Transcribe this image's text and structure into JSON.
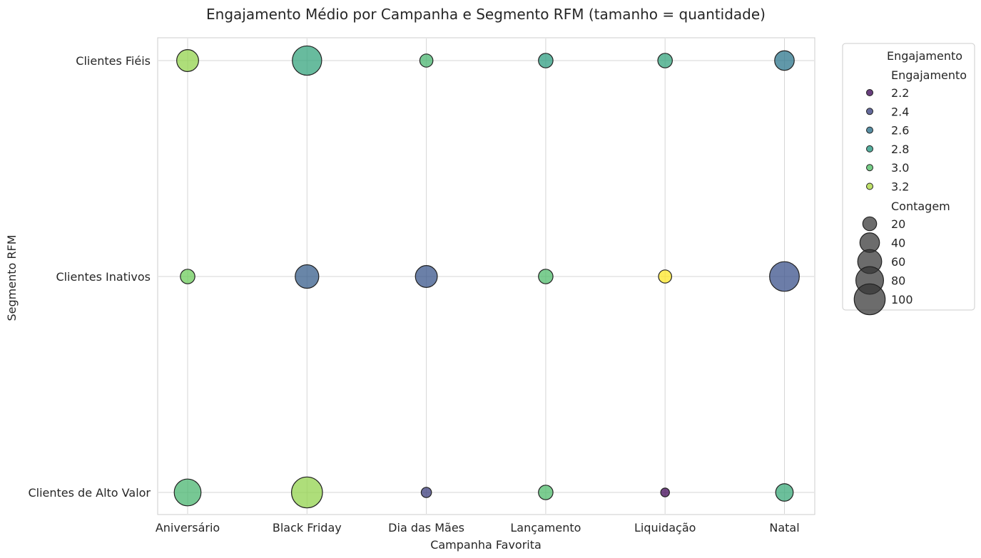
{
  "chart_data": {
    "type": "scatter",
    "title": "Engajamento Médio por Campanha e Segmento RFM (tamanho = quantidade)",
    "xlabel": "Campanha Favorita",
    "ylabel": "Segmento RFM",
    "categories_x": [
      "Aniversário",
      "Black Friday",
      "Dia das Mães",
      "Lançamento",
      "Liquidação",
      "Natal"
    ],
    "categories_y": [
      "Clientes de Alto Valor",
      "Clientes Inativos",
      "Clientes Fiéis"
    ],
    "grid": true,
    "color_scale": "viridis",
    "color_range": [
      2.15,
      3.35
    ],
    "points": [
      {
        "x": "Aniversário",
        "y": "Clientes Fiéis",
        "engajamento": 3.15,
        "contagem": 50
      },
      {
        "x": "Black Friday",
        "y": "Clientes Fiéis",
        "engajamento": 2.85,
        "contagem": 90
      },
      {
        "x": "Dia das Mães",
        "y": "Clientes Fiéis",
        "engajamento": 2.95,
        "contagem": 18
      },
      {
        "x": "Lançamento",
        "y": "Clientes Fiéis",
        "engajamento": 2.82,
        "contagem": 22
      },
      {
        "x": "Liquidação",
        "y": "Clientes Fiéis",
        "engajamento": 2.85,
        "contagem": 22
      },
      {
        "x": "Natal",
        "y": "Clientes Fiéis",
        "engajamento": 2.62,
        "contagem": 40
      },
      {
        "x": "Aniversário",
        "y": "Clientes Inativos",
        "engajamento": 3.08,
        "contagem": 22
      },
      {
        "x": "Black Friday",
        "y": "Clientes Inativos",
        "engajamento": 2.5,
        "contagem": 58
      },
      {
        "x": "Dia das Mães",
        "y": "Clientes Inativos",
        "engajamento": 2.47,
        "contagem": 50
      },
      {
        "x": "Lançamento",
        "y": "Clientes Inativos",
        "engajamento": 2.98,
        "contagem": 22
      },
      {
        "x": "Liquidação",
        "y": "Clientes Inativos",
        "engajamento": 3.35,
        "contagem": 18
      },
      {
        "x": "Natal",
        "y": "Clientes Inativos",
        "engajamento": 2.45,
        "contagem": 92
      },
      {
        "x": "Aniversário",
        "y": "Clientes de Alto Valor",
        "engajamento": 2.95,
        "contagem": 75
      },
      {
        "x": "Black Friday",
        "y": "Clientes de Alto Valor",
        "engajamento": 3.15,
        "contagem": 100
      },
      {
        "x": "Dia das Mães",
        "y": "Clientes de Alto Valor",
        "engajamento": 2.38,
        "contagem": 11
      },
      {
        "x": "Lançamento",
        "y": "Clientes de Alto Valor",
        "engajamento": 2.98,
        "contagem": 22
      },
      {
        "x": "Liquidação",
        "y": "Clientes de Alto Valor",
        "engajamento": 2.18,
        "contagem": 8
      },
      {
        "x": "Natal",
        "y": "Clientes de Alto Valor",
        "engajamento": 2.88,
        "contagem": 32
      }
    ],
    "legend": {
      "position": "outside-right",
      "title": "Engajamento",
      "hue_heading": "Engajamento",
      "hue_entries": [
        {
          "label": "2.2",
          "value": 2.2
        },
        {
          "label": "2.4",
          "value": 2.4
        },
        {
          "label": "2.6",
          "value": 2.6
        },
        {
          "label": "2.8",
          "value": 2.8
        },
        {
          "label": "3.0",
          "value": 3.0
        },
        {
          "label": "3.2",
          "value": 3.2
        }
      ],
      "size_heading": "Contagem",
      "size_entries": [
        {
          "label": "20",
          "value": 20
        },
        {
          "label": "40",
          "value": 40
        },
        {
          "label": "60",
          "value": 60
        },
        {
          "label": "80",
          "value": 80
        },
        {
          "label": "100",
          "value": 100
        }
      ]
    }
  }
}
